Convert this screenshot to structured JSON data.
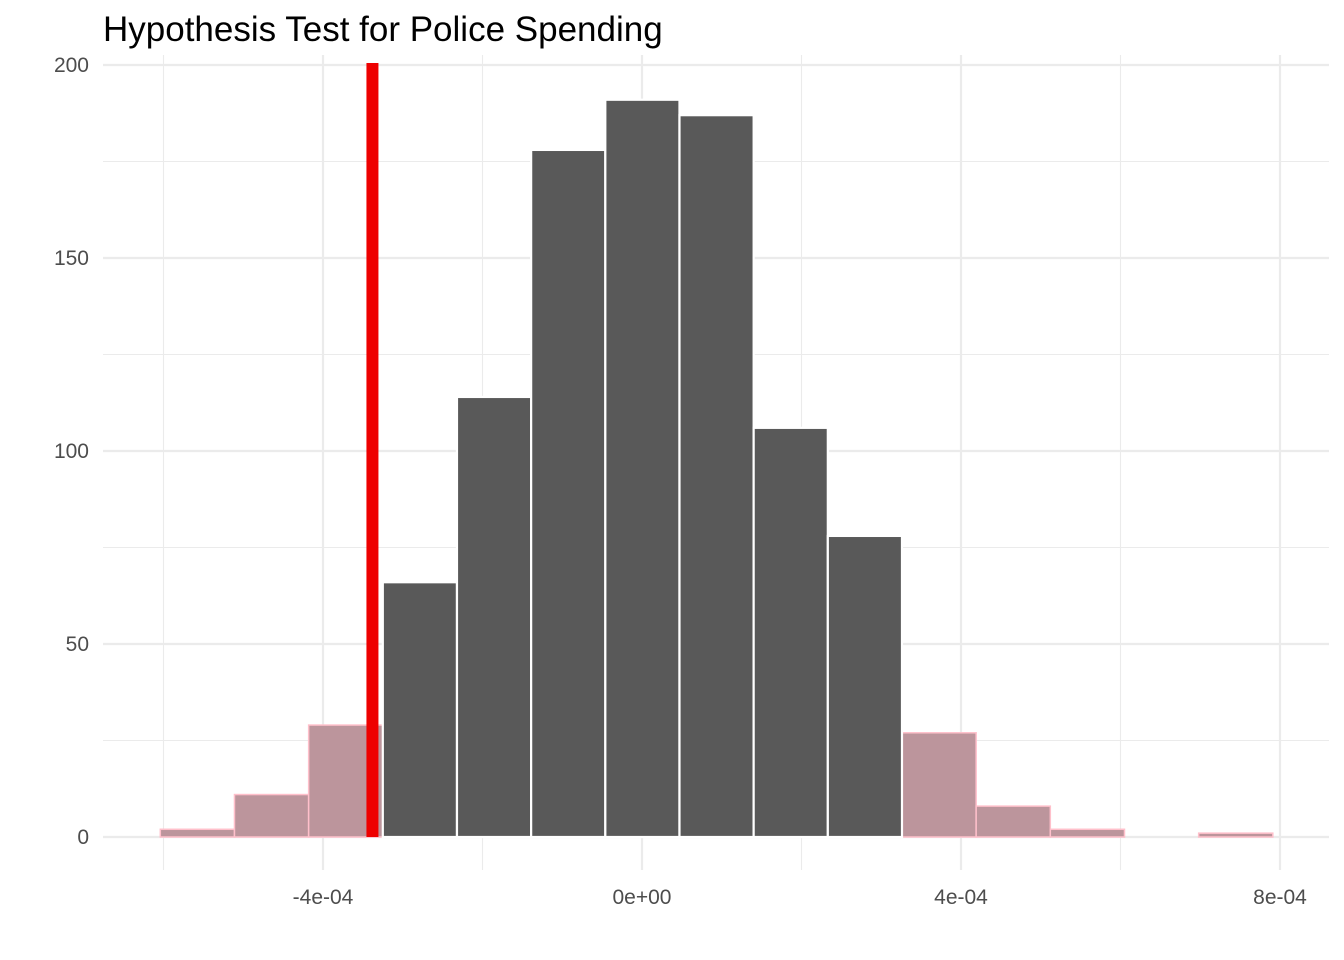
{
  "chart_data": {
    "type": "bar",
    "title": "Hypothesis Test for Police Spending",
    "xlabel": "",
    "ylabel": "",
    "xlim": [
      -0.00065,
      0.00086
    ],
    "ylim": [
      -8,
      201
    ],
    "grid": true,
    "x_ticks": [
      {
        "value": -0.0004,
        "label": "-4e-04"
      },
      {
        "value": 0,
        "label": "0e+00"
      },
      {
        "value": 0.0004,
        "label": "4e-04"
      },
      {
        "value": 0.0008,
        "label": "8e-04"
      }
    ],
    "y_ticks": [
      {
        "value": 0,
        "label": "0"
      },
      {
        "value": 50,
        "label": "50"
      },
      {
        "value": 100,
        "label": "100"
      },
      {
        "value": 150,
        "label": "150"
      },
      {
        "value": 200,
        "label": "200"
      }
    ],
    "bins": [
      {
        "x0": -0.000604,
        "x1": -0.000511,
        "count": 2,
        "shaded": true
      },
      {
        "x0": -0.000511,
        "x1": -0.000418,
        "count": 11,
        "shaded": true
      },
      {
        "x0": -0.000418,
        "x1": -0.000325,
        "count": 29,
        "shaded": true
      },
      {
        "x0": -0.000325,
        "x1": -0.000232,
        "count": 66,
        "shaded": false
      },
      {
        "x0": -0.000232,
        "x1": -0.000139,
        "count": 114,
        "shaded": false
      },
      {
        "x0": -0.000139,
        "x1": -4.6e-05,
        "count": 178,
        "shaded": false
      },
      {
        "x0": -4.6e-05,
        "x1": 4.7e-05,
        "count": 191,
        "shaded": false
      },
      {
        "x0": 4.7e-05,
        "x1": 0.00014,
        "count": 187,
        "shaded": false
      },
      {
        "x0": 0.00014,
        "x1": 0.000233,
        "count": 106,
        "shaded": false
      },
      {
        "x0": 0.000233,
        "x1": 0.000326,
        "count": 78,
        "shaded": false
      },
      {
        "x0": 0.000326,
        "x1": 0.000419,
        "count": 27,
        "shaded": true
      },
      {
        "x0": 0.000419,
        "x1": 0.000512,
        "count": 8,
        "shaded": true
      },
      {
        "x0": 0.000512,
        "x1": 0.000605,
        "count": 2,
        "shaded": true
      },
      {
        "x0": 0.000605,
        "x1": 0.000698,
        "count": 0,
        "shaded": true
      },
      {
        "x0": 0.000698,
        "x1": 0.000791,
        "count": 1,
        "shaded": true
      }
    ],
    "observed_statistic": -0.000338,
    "colors": {
      "bar_fill": "#595959",
      "bar_outline": "#ffffff",
      "shade_fill": "#bc959c",
      "shade_outline": "#ffc0cb",
      "observed_line": "#ee0000"
    }
  }
}
